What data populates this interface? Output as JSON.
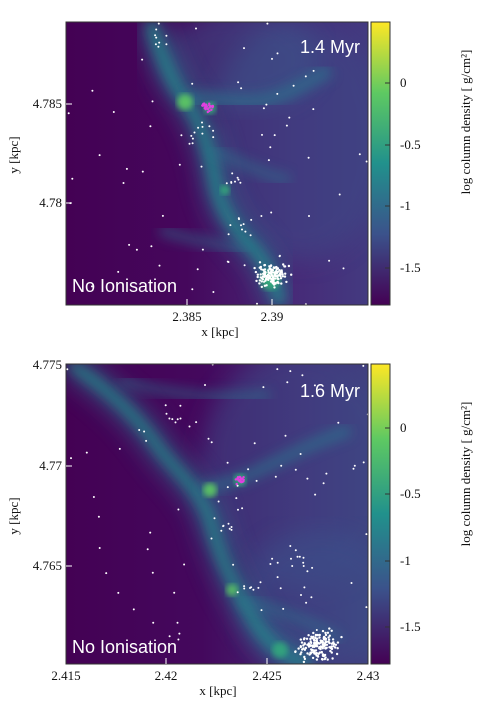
{
  "chart_data": [
    {
      "type": "heatmap",
      "time_label": "1.4 Myr",
      "model_label": "No Ionisation",
      "xlabel": "x [kpc]",
      "ylabel": "y [kpc]",
      "xticks": [
        "2.385",
        "2.39"
      ],
      "yticks": [
        "4.785",
        "4.78"
      ],
      "colorbar_label": "log column density [ g/cm²]",
      "colorbar_ticks": [
        "0",
        "-0.5",
        "-1",
        "-1.5"
      ],
      "colorbar_range": [
        -1.8,
        0.45
      ],
      "colormap": [
        "#440154",
        "#3b528b",
        "#21918c",
        "#5ec962",
        "#fde725"
      ],
      "star_colors": {
        "stars": "#ffffff",
        "ionising_sources": "#e040e0"
      }
    },
    {
      "type": "heatmap",
      "time_label": "1.6 Myr",
      "model_label": "No Ionisation",
      "xlabel": "x [kpc]",
      "ylabel": "y [kpc]",
      "xticks": [
        "2.415",
        "2.42",
        "2.425",
        "2.43"
      ],
      "yticks": [
        "4.775",
        "4.77",
        "4.765"
      ],
      "colorbar_label": "log column density [ g/cm²]",
      "colorbar_ticks": [
        "0",
        "-0.5",
        "-1",
        "-1.5"
      ],
      "colorbar_range": [
        -1.8,
        0.45
      ],
      "colormap": [
        "#440154",
        "#3b528b",
        "#21918c",
        "#5ec962",
        "#fde725"
      ],
      "star_colors": {
        "stars": "#ffffff",
        "ionising_sources": "#e040e0"
      }
    }
  ]
}
